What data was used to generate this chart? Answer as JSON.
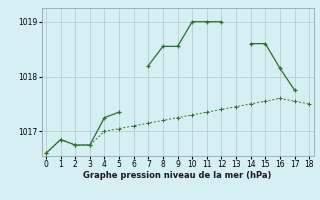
{
  "xlabel_label": "Graphe pression niveau de la mer (hPa)",
  "bg_color": "#d6eff2",
  "line_color": "#2d6e2d",
  "grid_color": "#b0c8cc",
  "spine_color": "#8aacb0",
  "x": [
    0,
    1,
    2,
    3,
    4,
    5,
    6,
    7,
    8,
    9,
    10,
    11,
    12,
    13,
    14,
    15,
    16,
    17,
    18
  ],
  "series1": [
    1016.6,
    1016.85,
    1016.75,
    1016.75,
    1017.25,
    1017.35,
    null,
    1018.2,
    1018.55,
    1018.55,
    1019.0,
    1019.0,
    1019.0,
    null,
    1018.6,
    1018.6,
    1018.15,
    1017.75,
    null
  ],
  "series2": [
    1016.6,
    1016.85,
    1016.75,
    1016.75,
    1017.0,
    1017.05,
    1017.1,
    1017.15,
    1017.2,
    1017.25,
    1017.3,
    1017.35,
    1017.4,
    1017.45,
    1017.5,
    1017.55,
    1017.6,
    1017.55,
    1017.5
  ],
  "ylim": [
    1016.55,
    1019.25
  ],
  "yticks": [
    1017,
    1018,
    1019
  ],
  "xlim": [
    -0.3,
    18.3
  ],
  "xticks": [
    0,
    1,
    2,
    3,
    4,
    5,
    6,
    7,
    8,
    9,
    10,
    11,
    12,
    13,
    14,
    15,
    16,
    17,
    18
  ],
  "tick_fontsize": 5.5,
  "xlabel_fontsize": 6.0
}
